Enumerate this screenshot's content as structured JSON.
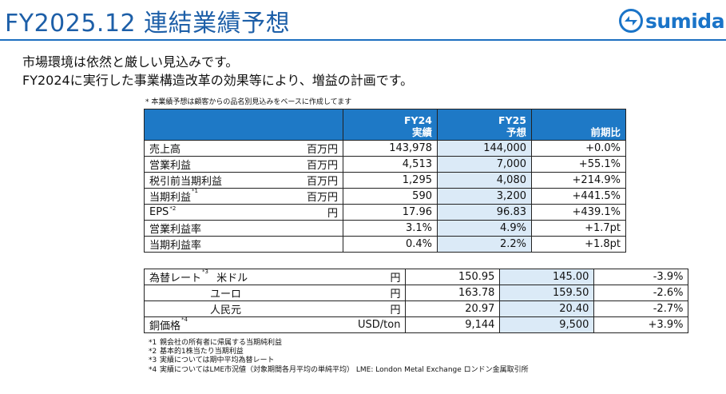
{
  "header": {
    "title": "FY2025.12 連結業績予想",
    "logo_text": "sumida"
  },
  "intro": {
    "line1": "市場環境は依然と厳しい見込みです。",
    "line2": "FY2024に実行した事業構造改革の効果等により、増益の計画です。"
  },
  "table_note": "* 本業績予想は顧客からの品名別見込みをベースに作成してます",
  "columns": {
    "fy24_line1": "FY24",
    "fy24_line2": "実績",
    "fy25_line1": "FY25",
    "fy25_line2": "予想",
    "yoy": "前期比"
  },
  "rows": [
    {
      "label": "売上高",
      "sup": "",
      "unit": "百万円",
      "fy24": "143,978",
      "fy25": "144,000",
      "yoy": "+0.0%"
    },
    {
      "label": "営業利益",
      "sup": "",
      "unit": "百万円",
      "fy24": "4,513",
      "fy25": "7,000",
      "yoy": "+55.1%"
    },
    {
      "label": "税引前当期利益",
      "sup": "",
      "unit": "百万円",
      "fy24": "1,295",
      "fy25": "4,080",
      "yoy": "+214.9%"
    },
    {
      "label": "当期利益",
      "sup": "*1",
      "unit": "百万円",
      "fy24": "590",
      "fy25": "3,200",
      "yoy": "+441.5%"
    },
    {
      "label": "EPS",
      "sup": "*2",
      "unit": "円",
      "fy24": "17.96",
      "fy25": "96.83",
      "yoy": "+439.1%"
    },
    {
      "label": "営業利益率",
      "sup": "",
      "unit": "",
      "fy24": "3.1%",
      "fy25": "4.9%",
      "yoy": "+1.7pt"
    },
    {
      "label": "当期利益率",
      "sup": "",
      "unit": "",
      "fy24": "0.4%",
      "fy25": "2.2%",
      "yoy": "+1.8pt"
    }
  ],
  "fx": {
    "label": "為替レート",
    "sup": "*3",
    "rows": [
      {
        "currency": "米ドル",
        "unit": "円",
        "fy24": "150.95",
        "fy25": "145.00",
        "yoy": "-3.9%"
      },
      {
        "currency": "ユーロ",
        "unit": "円",
        "fy24": "163.78",
        "fy25": "159.50",
        "yoy": "-2.6%"
      },
      {
        "currency": "人民元",
        "unit": "円",
        "fy24": "20.97",
        "fy25": "20.40",
        "yoy": "-2.7%"
      }
    ]
  },
  "copper": {
    "label": "銅価格",
    "sup": "*4",
    "unit": "USD/ton",
    "fy24": "9,144",
    "fy25": "9,500",
    "yoy": "+3.9%"
  },
  "footnotes": [
    {
      "mark": "*1",
      "text": "親会社の所有者に帰属する当期純利益"
    },
    {
      "mark": "*2",
      "text": "基本的1株当たり当期利益"
    },
    {
      "mark": "*3",
      "text": "実績については期中平均為替レート"
    },
    {
      "mark": "*4",
      "text": "実績についてはLME市況値（対象期間各月平均の単純平均） LME: London Metal Exchange ロンドン金属取引所"
    }
  ],
  "colors": {
    "header_blue": "#1e79c6",
    "title_blue": "#1d5fa8",
    "fy25_shade": "#dbeaf7"
  }
}
